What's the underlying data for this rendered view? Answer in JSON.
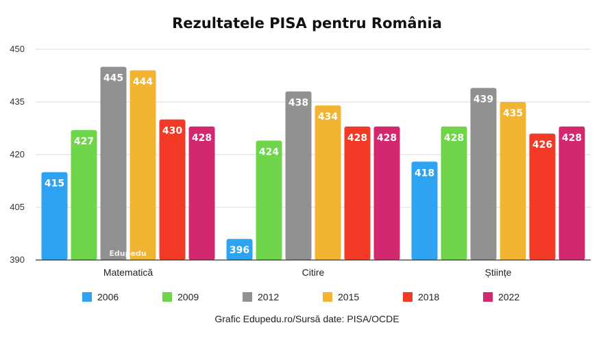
{
  "chart_data": {
    "type": "bar",
    "title": "Rezultatele PISA pentru România",
    "categories": [
      "Matematică",
      "Citire",
      "Științe"
    ],
    "series": [
      {
        "name": "2006",
        "color": "#2ea3f2",
        "values": [
          415,
          396,
          418
        ]
      },
      {
        "name": "2009",
        "color": "#6fd54a",
        "values": [
          427,
          424,
          428
        ]
      },
      {
        "name": "2012",
        "color": "#919191",
        "values": [
          445,
          438,
          439
        ]
      },
      {
        "name": "2015",
        "color": "#f2b531",
        "values": [
          444,
          434,
          435
        ]
      },
      {
        "name": "2018",
        "color": "#f23a27",
        "values": [
          430,
          428,
          426
        ]
      },
      {
        "name": "2022",
        "color": "#d2286f",
        "values": [
          428,
          428,
          428
        ]
      }
    ],
    "ylim": [
      390,
      450
    ],
    "yticks": [
      390,
      405,
      420,
      435,
      450
    ],
    "grid": true,
    "legend_position": "bottom"
  },
  "watermark": "Edupedu",
  "source_note": "Grafic Edupedu.ro/Sursă date: PISA/OCDE"
}
